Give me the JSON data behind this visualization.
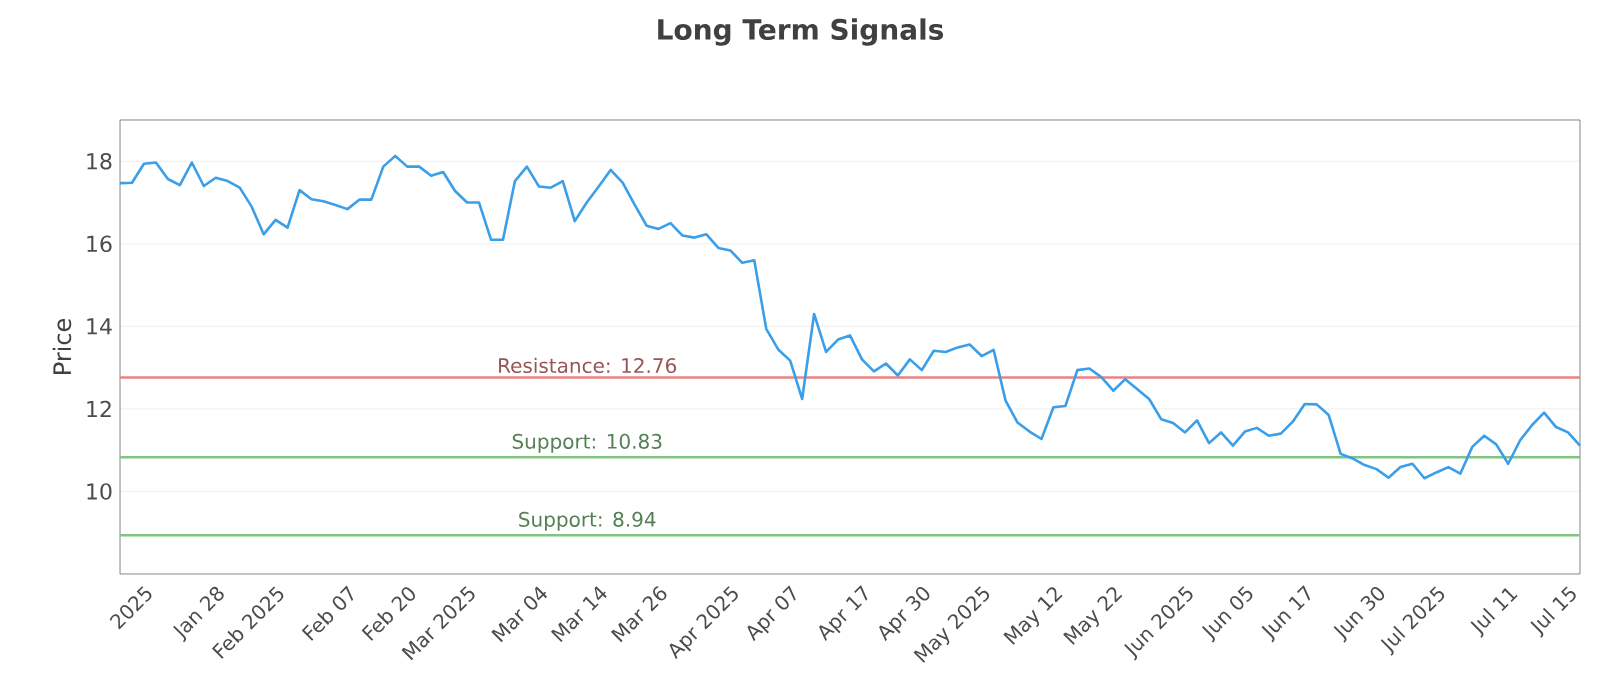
{
  "chart_data": {
    "type": "line",
    "title": "Long Term Signals",
    "ylabel": "Price",
    "categories": [
      null,
      null,
      "2025",
      null,
      null,
      null,
      null,
      null,
      "Jan 28",
      null,
      null,
      null,
      null,
      "Feb 2025",
      null,
      null,
      null,
      null,
      null,
      "Feb 07",
      null,
      null,
      null,
      null,
      "Feb 20",
      null,
      null,
      null,
      null,
      "Mar 2025",
      null,
      null,
      null,
      null,
      null,
      "Mar 04",
      null,
      null,
      null,
      null,
      "Mar 14",
      null,
      null,
      null,
      null,
      "Mar 26",
      null,
      null,
      null,
      null,
      null,
      "Apr 2025",
      null,
      null,
      null,
      null,
      "Apr 07",
      null,
      null,
      null,
      null,
      null,
      "Apr 17",
      null,
      null,
      null,
      null,
      "Apr 30",
      null,
      null,
      null,
      null,
      "May 2025",
      null,
      null,
      null,
      null,
      null,
      "May 12",
      null,
      null,
      null,
      null,
      "May 22",
      null,
      null,
      null,
      null,
      null,
      "Jun 2025",
      null,
      null,
      null,
      null,
      "Jun 05",
      null,
      null,
      null,
      null,
      "Jun 17",
      null,
      null,
      null,
      null,
      null,
      "Jun 30",
      null,
      null,
      null,
      null,
      "Jul 2025",
      null,
      null,
      null,
      null,
      null,
      "Jul 11",
      null,
      null,
      null,
      null,
      "Jul 15",
      null
    ],
    "series": [
      {
        "color": "#3a9ee8",
        "values": [
          17.47,
          17.48,
          17.94,
          17.97,
          17.57,
          17.42,
          17.97,
          17.4,
          17.6,
          17.52,
          17.36,
          16.9,
          16.23,
          16.58,
          16.39,
          17.3,
          17.08,
          17.03,
          16.94,
          16.84,
          17.07,
          17.07,
          17.87,
          18.13,
          17.87,
          17.87,
          17.65,
          17.74,
          17.28,
          17.0,
          17.0,
          16.1,
          16.1,
          17.52,
          17.87,
          17.39,
          17.36,
          17.52,
          16.55,
          17.0,
          17.39,
          17.79,
          17.48,
          16.95,
          16.44,
          16.36,
          16.5,
          16.2,
          16.15,
          16.23,
          15.9,
          15.84,
          15.54,
          15.6,
          13.94,
          13.44,
          13.17,
          12.24,
          14.3,
          13.38,
          13.68,
          13.78,
          13.2,
          12.91,
          13.1,
          12.81,
          13.2,
          12.94,
          13.41,
          13.38,
          13.49,
          13.56,
          13.28,
          13.43,
          12.2,
          11.67,
          11.45,
          11.27,
          12.04,
          12.07,
          12.94,
          12.98,
          12.77,
          12.44,
          12.72,
          12.48,
          12.24,
          11.75,
          11.66,
          11.43,
          11.72,
          11.17,
          11.43,
          11.11,
          11.45,
          11.54,
          11.35,
          11.4,
          11.69,
          12.12,
          12.11,
          11.85,
          10.91,
          10.8,
          10.64,
          10.54,
          10.33,
          10.59,
          10.67,
          10.32,
          10.46,
          10.59,
          10.43,
          11.08,
          11.35,
          11.14,
          10.67,
          11.24,
          11.61,
          11.91,
          11.56,
          11.43,
          11.11
        ]
      }
    ],
    "ylim": [
      8,
      19
    ],
    "yticks": [
      10,
      12,
      14,
      16,
      18
    ],
    "grid": "y",
    "marker": "none",
    "line_style": "solid",
    "ref_lines": [
      {
        "axis": "y",
        "value": 12.76,
        "label": "Resistance: 12.76",
        "color": "#e98383"
      },
      {
        "axis": "y",
        "value": 10.83,
        "label": "Support: 10.83",
        "color": "#82c482"
      },
      {
        "axis": "y",
        "value": 8.94,
        "label": "Support: 8.94",
        "color": "#82c482"
      }
    ]
  }
}
